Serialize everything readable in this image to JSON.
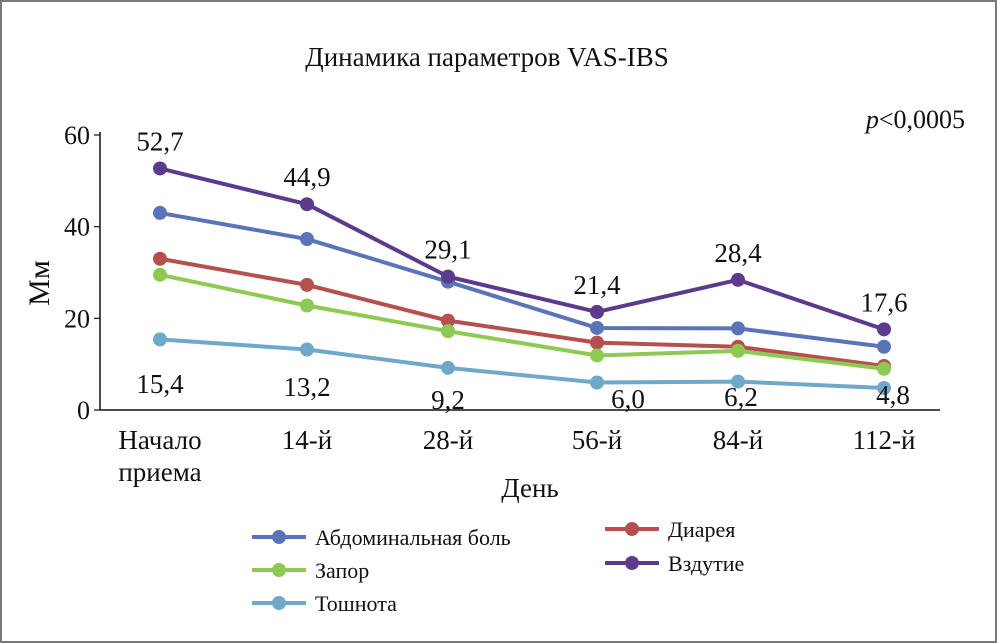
{
  "chart_data": {
    "type": "line",
    "title": "Динамика параметров VAS-IBS",
    "annotation": "p<0,0005",
    "annotation_italic": "p",
    "annotation_rest": "<0,0005",
    "xlabel": "День",
    "ylabel": "Мм",
    "ylim": [
      0,
      60
    ],
    "yticks": [
      "0",
      "20",
      "40",
      "60"
    ],
    "ytick_values": [
      0,
      20,
      40,
      60
    ],
    "categories": [
      "Начало\nприема",
      "14-й",
      "28-й",
      "56-й",
      "84-й",
      "112-й"
    ],
    "category_lines": [
      [
        "Начало",
        "приема"
      ],
      [
        "14-й"
      ],
      [
        "28-й"
      ],
      [
        "56-й"
      ],
      [
        "84-й"
      ],
      [
        "112-й"
      ]
    ],
    "grid": false,
    "legend_position": "bottom",
    "series": [
      {
        "name": "Абдоминальная боль",
        "color": "#5b73b8",
        "values": [
          43.0,
          37.3,
          28.0,
          17.9,
          17.8,
          13.8
        ]
      },
      {
        "name": "Диарея",
        "color": "#b5504e",
        "values": [
          33.0,
          27.3,
          19.5,
          14.7,
          13.8,
          9.6
        ]
      },
      {
        "name": "Запор",
        "color": "#8ec953",
        "values": [
          29.5,
          22.8,
          17.2,
          11.9,
          12.9,
          9.0
        ]
      },
      {
        "name": "Вздутие",
        "color": "#5c3a8c",
        "values": [
          52.7,
          44.9,
          29.1,
          21.4,
          28.4,
          17.6
        ],
        "labels": [
          "52,7",
          "44,9",
          "29,1",
          "21,4",
          "28,4",
          "17,6"
        ]
      },
      {
        "name": "Тошнота",
        "color": "#6fa8c8",
        "values": [
          15.4,
          13.2,
          9.2,
          6.0,
          6.2,
          4.8
        ],
        "labels": [
          "15,4",
          "13,2",
          "9,2",
          "6,0",
          "6,2",
          "4,8"
        ]
      }
    ]
  }
}
